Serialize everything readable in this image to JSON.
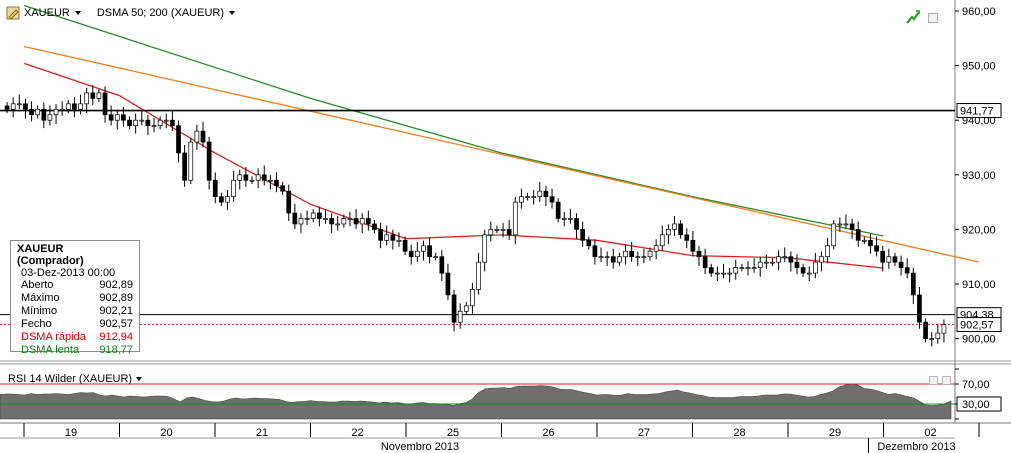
{
  "toolbar": {
    "symbol": "XAUEUR",
    "indicator": "DSMA 50; 200 (XAUEUR)"
  },
  "legend": {
    "title": "XAUEUR (Comprador)",
    "date": "03-Dez-2013 00:00",
    "rows": [
      {
        "label": "Aberto",
        "value": "902,89",
        "color": "#000000"
      },
      {
        "label": "Máximo",
        "value": "902,89",
        "color": "#000000"
      },
      {
        "label": "Mínimo",
        "value": "902,21",
        "color": "#000000"
      },
      {
        "label": "Fecho",
        "value": "902,57",
        "color": "#000000"
      },
      {
        "label": "DSMA rápida",
        "value": "912,94",
        "color": "#d40000"
      },
      {
        "label": "DSMA lenta",
        "value": "918,77",
        "color": "#108010"
      }
    ]
  },
  "rsi": {
    "title": "RSI 14 Wilder (XAUEUR)",
    "level_labels": [
      "70,00",
      "30,00"
    ]
  },
  "colors": {
    "fast_ma": "#e02020",
    "slow_ma": "#2a8a2a",
    "trendline": "#f07f1e",
    "hline": "#000000",
    "candle_up": "#ffffff",
    "candle_down": "#000000",
    "rsi_fill": "#6f6f6f"
  },
  "chart_data": {
    "type": "candlestick",
    "symbol": "XAUEUR",
    "price_axis": {
      "ticks": [
        960,
        950,
        940,
        930,
        920,
        910,
        900
      ],
      "tick_labels": [
        "960,00",
        "950,00",
        "940,00",
        "930,00",
        "920,00",
        "910,00",
        "900,00"
      ],
      "range": [
        897,
        962
      ]
    },
    "horizontal_lines": [
      {
        "value": 941.77,
        "label": "941,77"
      },
      {
        "value": 904.38,
        "label": "904,38"
      }
    ],
    "current_price": {
      "value": 902.57,
      "label": "902,57"
    },
    "time_axis": {
      "day_labels": [
        "19",
        "20",
        "21",
        "22",
        "25",
        "26",
        "27",
        "28",
        "29",
        "02"
      ],
      "month_labels": [
        {
          "label": "Novembro 2013",
          "after_day": "22"
        },
        {
          "label": "Dezembro 2013",
          "after_day": "02"
        }
      ]
    },
    "closes": [
      942,
      943,
      943,
      942,
      941,
      942,
      940,
      941,
      942,
      942,
      943,
      942,
      943,
      945,
      944,
      945,
      941,
      940,
      941,
      940,
      939,
      940,
      940,
      939,
      939,
      940,
      940,
      939,
      934,
      929,
      936,
      938,
      936,
      929,
      926,
      925,
      926,
      929,
      930,
      929,
      929,
      930,
      929,
      929,
      928,
      927,
      923,
      921,
      922,
      922,
      923,
      922,
      922,
      921,
      921,
      922,
      922,
      921,
      922,
      921,
      920,
      918,
      919,
      918,
      918,
      916,
      915,
      916,
      917,
      915,
      915,
      912,
      908,
      903,
      905,
      906,
      909,
      914,
      919,
      920,
      920,
      920,
      919,
      925,
      926,
      926,
      926,
      927,
      926,
      925,
      922,
      922,
      922,
      920,
      918,
      917,
      915,
      915,
      915,
      914,
      915,
      916,
      915,
      915,
      915,
      916,
      917,
      919,
      920,
      921,
      919,
      918,
      916,
      915,
      913,
      912,
      912,
      912,
      912,
      913,
      913,
      913,
      913,
      914,
      914,
      914,
      915,
      915,
      914,
      913,
      912,
      912,
      914,
      915,
      917,
      921,
      921,
      921,
      920,
      918,
      918,
      917,
      916,
      914,
      915,
      914,
      913,
      912,
      908,
      903,
      900,
      900,
      901,
      902.57
    ],
    "ma_fast": [
      {
        "day": 0,
        "value": 950.4
      },
      {
        "day": 1,
        "value": 944.5
      },
      {
        "day": 2,
        "value": 934.0
      },
      {
        "day": 3,
        "value": 924.6
      },
      {
        "day": 4,
        "value": 918.3
      },
      {
        "day": 5,
        "value": 919.0
      },
      {
        "day": 6,
        "value": 918.0
      },
      {
        "day": 7,
        "value": 915.2
      },
      {
        "day": 8,
        "value": 914.8
      },
      {
        "day": 9,
        "value": 912.9
      }
    ],
    "ma_slow": [
      {
        "day": 0,
        "value": 961.0
      },
      {
        "day": 3,
        "value": 944.0
      },
      {
        "day": 5,
        "value": 934.0
      },
      {
        "day": 7,
        "value": 926.0
      },
      {
        "day": 9,
        "value": 918.8
      }
    ],
    "trendline": [
      {
        "day": 0,
        "value": 953.5
      },
      {
        "day": 10,
        "value": 914.0
      }
    ],
    "rsi_values": [
      49,
      50,
      50,
      49,
      48,
      51,
      49,
      50,
      50,
      51,
      50,
      49,
      51,
      53,
      52,
      53,
      48,
      46,
      48,
      46,
      44,
      46,
      45,
      44,
      45,
      46,
      46,
      45,
      40,
      34,
      42,
      44,
      41,
      37,
      35,
      34,
      36,
      40,
      42,
      40,
      41,
      42,
      41,
      41,
      40,
      39,
      35,
      33,
      35,
      35,
      37,
      35,
      35,
      34,
      34,
      36,
      36,
      35,
      36,
      35,
      34,
      32,
      34,
      32,
      33,
      31,
      30,
      32,
      33,
      31,
      31,
      30,
      29,
      27,
      31,
      33,
      40,
      53,
      60,
      62,
      62,
      63,
      61,
      65,
      66,
      66,
      66,
      67,
      66,
      64,
      60,
      59,
      59,
      56,
      53,
      51,
      48,
      49,
      49,
      47,
      48,
      51,
      49,
      49,
      49,
      50,
      51,
      54,
      56,
      58,
      54,
      52,
      49,
      47,
      44,
      43,
      43,
      43,
      43,
      45,
      45,
      45,
      46,
      48,
      48,
      48,
      50,
      50,
      48,
      46,
      44,
      45,
      49,
      52,
      56,
      64,
      68,
      70,
      68,
      61,
      60,
      57,
      53,
      49,
      51,
      48,
      45,
      42,
      35,
      28,
      27,
      28,
      31,
      36
    ]
  }
}
